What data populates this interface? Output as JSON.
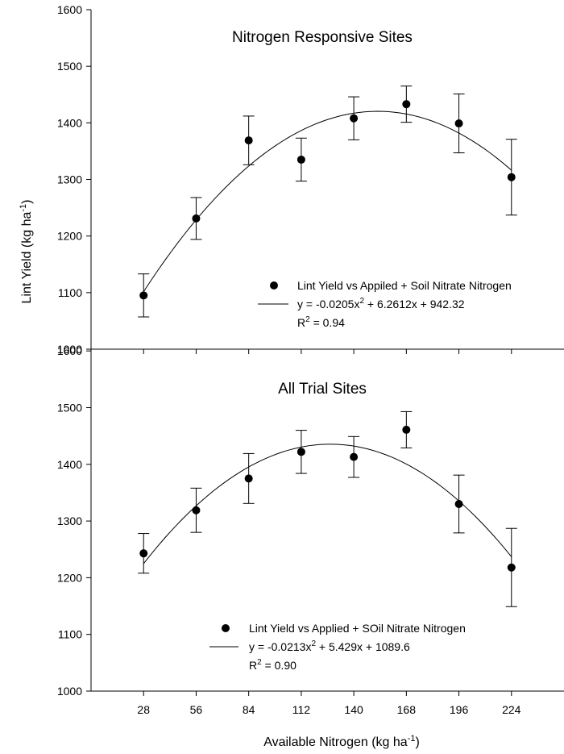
{
  "figure": {
    "ylabel": {
      "main": "Lint Yield (kg ha",
      "sup": "-1",
      "tail": ")"
    },
    "xlabel": {
      "main": "Available Nitrogen (kg ha",
      "sup": "-1",
      "tail": ")"
    }
  },
  "chart_data": [
    {
      "type": "scatter",
      "title": "Nitrogen Responsive Sites",
      "x": [
        28,
        56,
        84,
        112,
        140,
        168,
        196,
        224
      ],
      "y": [
        1095,
        1231,
        1369,
        1335,
        1408,
        1433,
        1399,
        1304
      ],
      "error": [
        38,
        37,
        43,
        38,
        38,
        32,
        52,
        67
      ],
      "ylim": [
        1000,
        1600
      ],
      "yticks": [
        "1000",
        "1100",
        "1200",
        "1300",
        "1400",
        "1500",
        "1600"
      ],
      "fit": {
        "a": -0.0205,
        "b": 6.2612,
        "c": 942.32,
        "x_range": [
          28,
          224
        ]
      },
      "legend": {
        "marker_label": "Lint Yield vs Appiled + Soil Nitrate Nitrogen",
        "eq_pre": "y = -0.0205x",
        "eq_sup": "2",
        "eq_post": " + 6.2612x + 942.32",
        "r2_pre": "R",
        "r2_sup": "2",
        "r2_post": " = 0.94",
        "placement": "lower-right"
      }
    },
    {
      "type": "scatter",
      "title": "All Trial Sites",
      "x": [
        28,
        56,
        84,
        112,
        140,
        168,
        196,
        224
      ],
      "y": [
        1243,
        1319,
        1375,
        1422,
        1413,
        1461,
        1330,
        1218
      ],
      "error": [
        35,
        39,
        44,
        38,
        36,
        32,
        51,
        69
      ],
      "ylim": [
        1000,
        1660
      ],
      "yticks": [
        "1000",
        "1100",
        "1200",
        "1300",
        "1400",
        "1500",
        "1600"
      ],
      "fit": {
        "a": -0.0213,
        "b": 5.429,
        "c": 1089.6,
        "x_range": [
          28,
          224
        ]
      },
      "legend": {
        "marker_label": "Lint Yield vs Applied + SOil Nitrate Nitrogen",
        "eq_pre": "y = -0.0213x",
        "eq_sup": "2",
        "eq_post": " + 5.429x + 1089.6",
        "r2_pre": "R",
        "r2_sup": "2",
        "r2_post": " = 0.90",
        "placement": "lower-center"
      },
      "xticks": [
        "28",
        "56",
        "84",
        "112",
        "140",
        "168",
        "196",
        "224"
      ],
      "xlim": [
        0,
        252
      ]
    }
  ]
}
